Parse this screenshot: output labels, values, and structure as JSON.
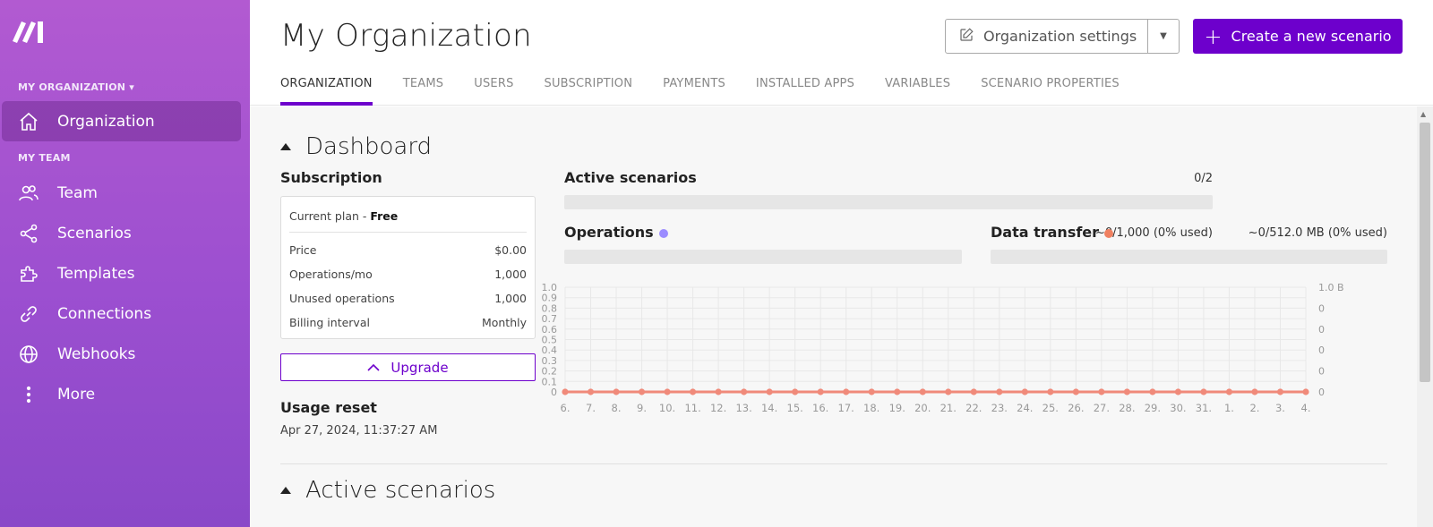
{
  "sidebar": {
    "org_section": "MY ORGANIZATION",
    "team_section": "MY TEAM",
    "items": [
      {
        "label": "Organization",
        "icon": "home-icon"
      },
      {
        "label": "Team",
        "icon": "users-icon"
      },
      {
        "label": "Scenarios",
        "icon": "share-icon"
      },
      {
        "label": "Templates",
        "icon": "puzzle-icon"
      },
      {
        "label": "Connections",
        "icon": "link-icon"
      },
      {
        "label": "Webhooks",
        "icon": "globe-icon"
      },
      {
        "label": "More",
        "icon": "more-vertical-icon"
      }
    ]
  },
  "header": {
    "title": "My Organization",
    "settings_label": "Organization settings",
    "create_label": "Create a new scenario",
    "tabs": [
      "ORGANIZATION",
      "TEAMS",
      "USERS",
      "SUBSCRIPTION",
      "PAYMENTS",
      "INSTALLED APPS",
      "VARIABLES",
      "SCENARIO PROPERTIES"
    ],
    "active_tab": "ORGANIZATION"
  },
  "dashboard": {
    "title": "Dashboard",
    "subscription": {
      "label": "Subscription",
      "plan_prefix": "Current plan - ",
      "plan_name": "Free",
      "rows": [
        {
          "key": "Price",
          "value": "$0.00"
        },
        {
          "key": "Operations/mo",
          "value": "1,000"
        },
        {
          "key": "Unused operations",
          "value": "1,000"
        },
        {
          "key": "Billing interval",
          "value": "Monthly"
        }
      ]
    },
    "upgrade_label": "Upgrade",
    "usage_reset_label": "Usage reset",
    "usage_reset_date": "Apr 27, 2024, 11:37:27 AM",
    "active_scenarios": {
      "label": "Active scenarios",
      "value": "0/2",
      "fraction": 0
    },
    "operations": {
      "label": "Operations",
      "value": "~0/1,000 (0% used)",
      "fraction": 0
    },
    "data_transfer": {
      "label": "Data transfer",
      "value": "~0/512.0 MB (0% used)",
      "fraction": 0
    }
  },
  "active_scenarios_section": "Active scenarios",
  "colors": {
    "accent": "#6d00cc",
    "operations_dot": "#9b8cff",
    "data_transfer_dot": "#f08060",
    "line": "#f08a7a"
  },
  "chart_data": {
    "type": "line",
    "x": [
      "6.",
      "7.",
      "8.",
      "9.",
      "10.",
      "11.",
      "12.",
      "13.",
      "14.",
      "15.",
      "16.",
      "17.",
      "18.",
      "19.",
      "20.",
      "21.",
      "22.",
      "23.",
      "24.",
      "25.",
      "26.",
      "27.",
      "28.",
      "29.",
      "30.",
      "31.",
      "1.",
      "2.",
      "3.",
      "4."
    ],
    "series": [
      {
        "values": [
          0,
          0,
          0,
          0,
          0,
          0,
          0,
          0,
          0,
          0,
          0,
          0,
          0,
          0,
          0,
          0,
          0,
          0,
          0,
          0,
          0,
          0,
          0,
          0,
          0,
          0,
          0,
          0,
          0,
          0
        ]
      }
    ],
    "left_ticks": [
      "1.0",
      "0.9",
      "0.8",
      "0.7",
      "0.6",
      "0.5",
      "0.4",
      "0.3",
      "0.2",
      "0.1",
      "0"
    ],
    "right_ticks": [
      "1.0 B",
      "0",
      "0",
      "0",
      "0",
      "0"
    ],
    "ylim": [
      0,
      1
    ],
    "grid": true
  }
}
